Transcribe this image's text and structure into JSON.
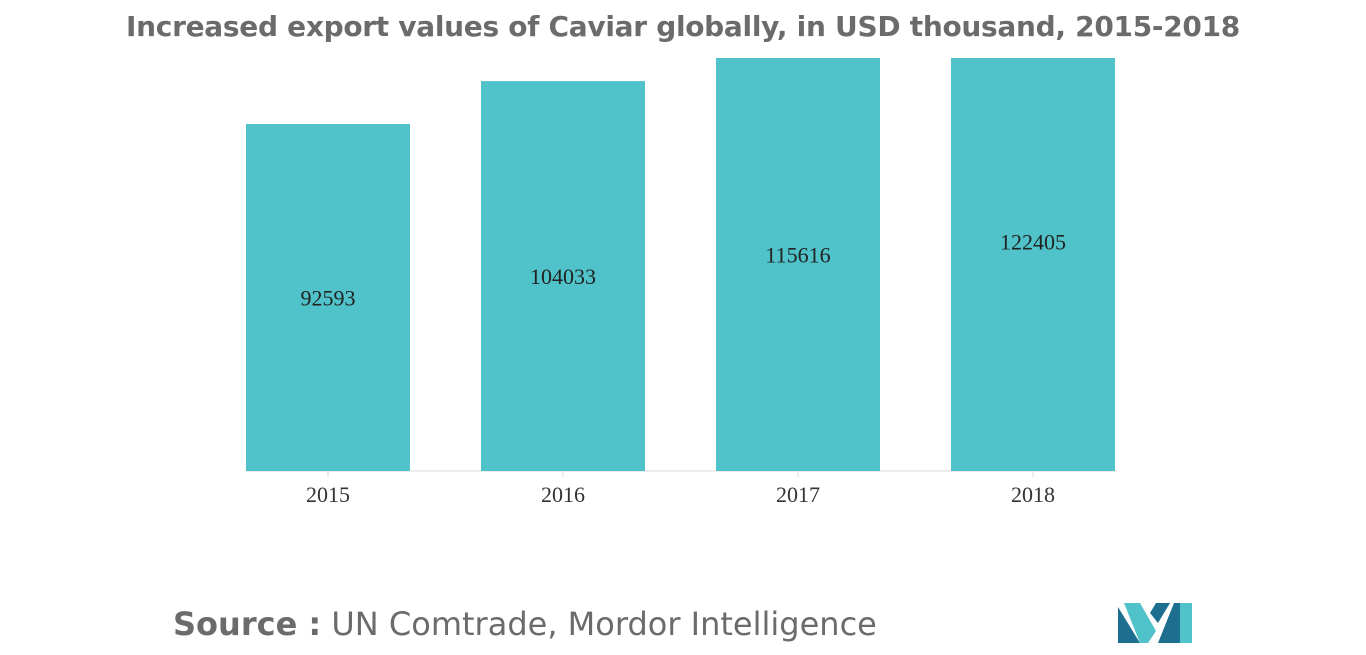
{
  "title": "Increased export values of Caviar globally, in USD thousand, 2015-2018",
  "source": {
    "prefix": "Source :",
    "text": "UN Comtrade, Mordor Intelligence"
  },
  "logo_icon": "mordor-intelligence-logo",
  "colors": {
    "bar": "#4fc3c9",
    "logo_dark": "#1e6f8f",
    "logo_light": "#4fc3c9"
  },
  "chart_data": {
    "type": "bar",
    "title": "Increased export values of Caviar globally, in USD thousand, 2015-2018",
    "categories": [
      "2015",
      "2016",
      "2017",
      "2018"
    ],
    "values": [
      92593,
      104033,
      115616,
      122405
    ],
    "data_labels": [
      "92593",
      "104033",
      "115616",
      "122405"
    ],
    "xlabel": "",
    "ylabel": "",
    "grid": false,
    "legend": "none"
  }
}
